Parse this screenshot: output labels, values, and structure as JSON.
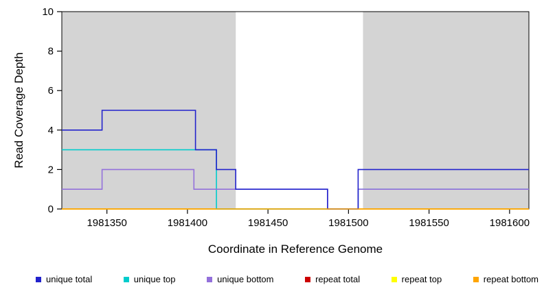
{
  "chart_data": {
    "type": "line",
    "style": "step",
    "title": "",
    "xlabel": "Coordinate in Reference Genome",
    "ylabel": "Read Coverage Depth",
    "xlim": [
      1981322,
      1981612
    ],
    "ylim": [
      0,
      10
    ],
    "xticks": [
      1981350,
      1981400,
      1981450,
      1981500,
      1981550,
      1981600
    ],
    "yticks": [
      0,
      2,
      4,
      6,
      8,
      10
    ],
    "grid": false,
    "background": "#ffffff",
    "shaded_regions": [
      {
        "x0": 1981322,
        "x1": 1981430,
        "color": "#d4d4d4"
      },
      {
        "x0": 1981509,
        "x1": 1981612,
        "color": "#d4d4d4"
      }
    ],
    "series": [
      {
        "name": "repeat total",
        "color": "#cc0000",
        "points": [
          [
            1981322,
            0
          ],
          [
            1981612,
            0
          ]
        ]
      },
      {
        "name": "repeat top",
        "color": "#ffff00",
        "points": [
          [
            1981322,
            0
          ],
          [
            1981612,
            0
          ]
        ]
      },
      {
        "name": "unique top",
        "color": "#00cccc",
        "points": [
          [
            1981322,
            3
          ],
          [
            1981418,
            3
          ],
          [
            1981418,
            0
          ],
          [
            1981506,
            0
          ],
          [
            1981506,
            1
          ],
          [
            1981612,
            1
          ]
        ]
      },
      {
        "name": "unique bottom",
        "color": "#9370db",
        "points": [
          [
            1981322,
            1
          ],
          [
            1981347,
            1
          ],
          [
            1981347,
            2
          ],
          [
            1981404,
            2
          ],
          [
            1981404,
            1
          ],
          [
            1981487,
            1
          ],
          [
            1981487,
            0
          ],
          [
            1981506,
            0
          ],
          [
            1981506,
            1
          ],
          [
            1981612,
            1
          ]
        ]
      },
      {
        "name": "unique total",
        "color": "#2222cc",
        "points": [
          [
            1981322,
            4
          ],
          [
            1981347,
            4
          ],
          [
            1981347,
            5
          ],
          [
            1981405,
            5
          ],
          [
            1981405,
            3
          ],
          [
            1981418,
            3
          ],
          [
            1981418,
            2
          ],
          [
            1981430,
            2
          ],
          [
            1981430,
            1
          ],
          [
            1981487,
            1
          ],
          [
            1981487,
            0
          ],
          [
            1981506,
            0
          ],
          [
            1981506,
            2
          ],
          [
            1981612,
            2
          ]
        ]
      },
      {
        "name": "repeat bottom",
        "color": "#ffa500",
        "points": [
          [
            1981322,
            0
          ],
          [
            1981612,
            0
          ]
        ]
      }
    ],
    "legend": [
      {
        "label": "unique total",
        "color": "#2222cc"
      },
      {
        "label": "unique top",
        "color": "#00cccc"
      },
      {
        "label": "unique bottom",
        "color": "#9370db"
      },
      {
        "label": "repeat total",
        "color": "#cc0000"
      },
      {
        "label": "repeat top",
        "color": "#ffff00"
      },
      {
        "label": "repeat bottom",
        "color": "#ffa500"
      }
    ],
    "legend_position": "bottom"
  }
}
